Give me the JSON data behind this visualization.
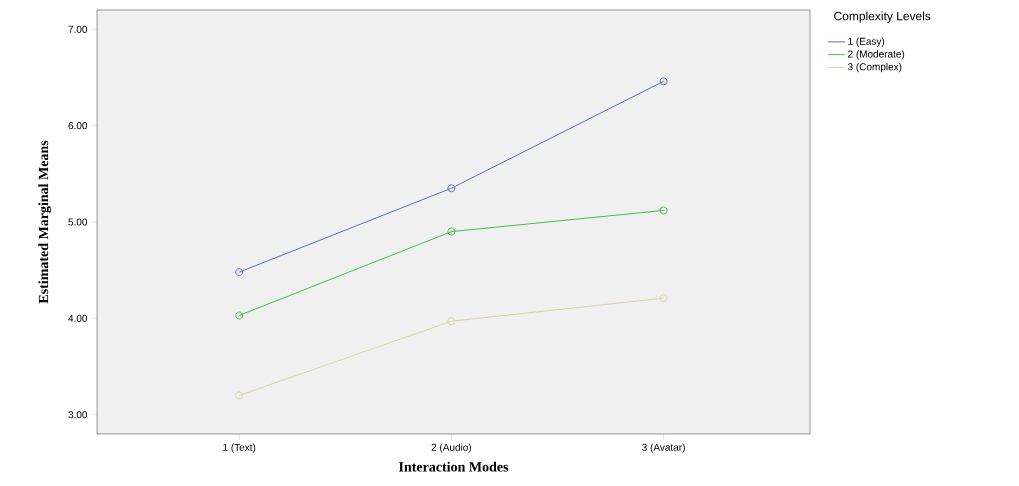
{
  "chart_data": {
    "type": "line",
    "xlabel": "Interaction Modes",
    "ylabel": "Estimated Marginal Means",
    "legend_title": "Complexity Levels",
    "categories": [
      "1 (Text)",
      "2 (Audio)",
      "3 (Avatar)"
    ],
    "series": [
      {
        "name": "1 (Easy)",
        "color": "#5a6cc0",
        "values": [
          4.48,
          5.35,
          6.46
        ]
      },
      {
        "name": "2 (Moderate)",
        "color": "#3fbf4a",
        "values": [
          4.03,
          4.9,
          5.12
        ]
      },
      {
        "name": "3 (Complex)",
        "color": "#d8d2a4",
        "values": [
          3.2,
          3.97,
          4.21
        ]
      }
    ],
    "ylim": [
      2.8,
      7.2
    ],
    "yticks": [
      {
        "value": 3,
        "label": "3.00"
      },
      {
        "value": 4,
        "label": "4.00"
      },
      {
        "value": 5,
        "label": "5.00"
      },
      {
        "value": 6,
        "label": "6.00"
      },
      {
        "value": 7,
        "label": "7.00"
      }
    ],
    "grid": false,
    "legend": "top right",
    "marker": "circle",
    "line_style": "solid"
  }
}
